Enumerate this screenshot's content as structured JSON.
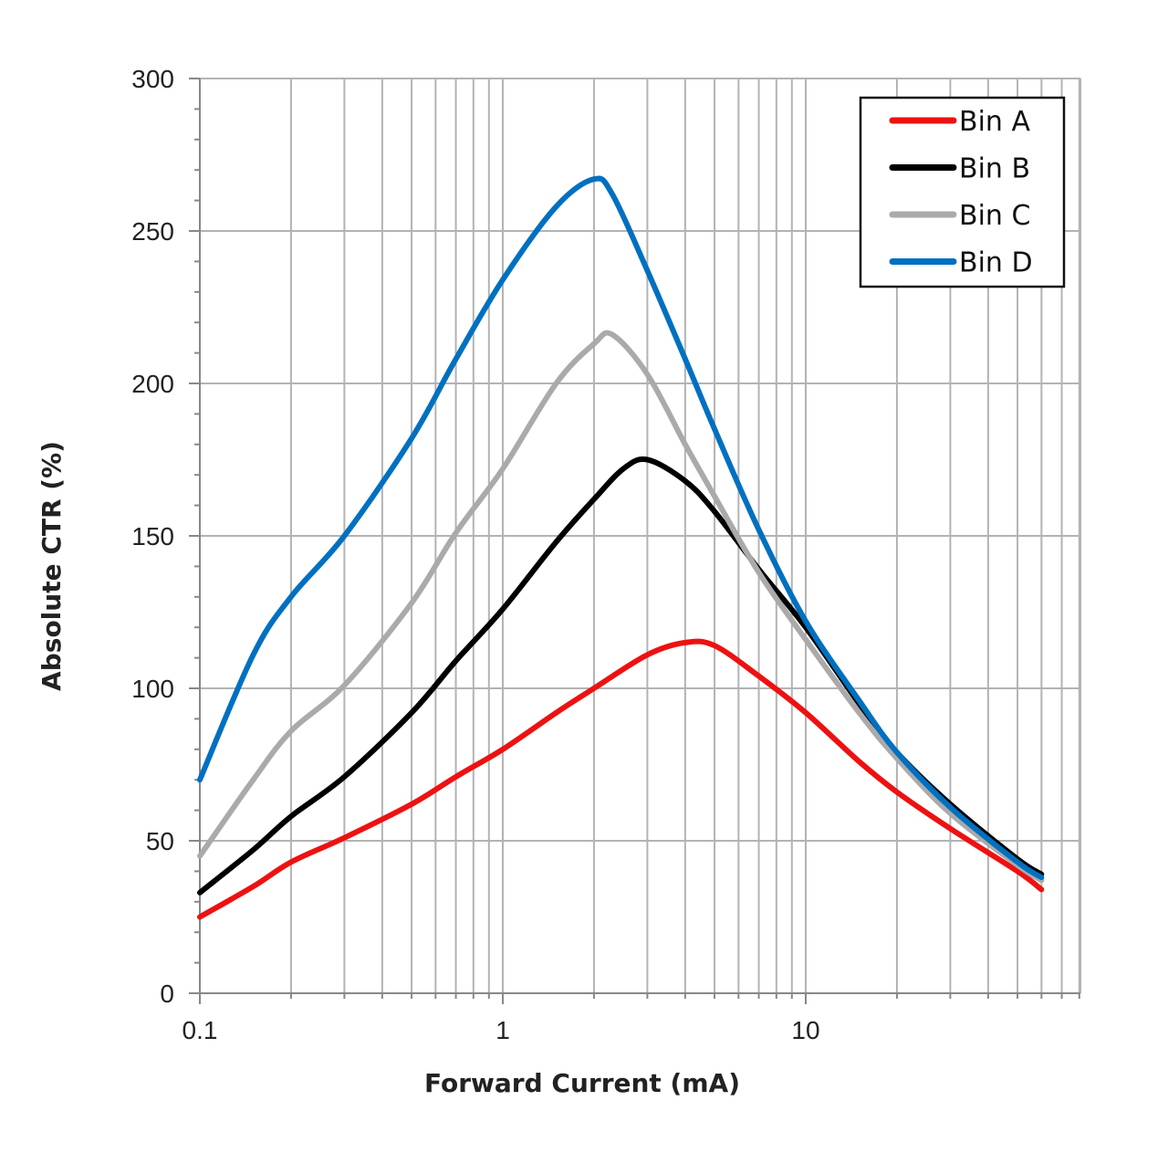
{
  "chart_data": {
    "type": "line",
    "xlabel": "Forward Current (mA)",
    "ylabel": "Absolute CTR (%)",
    "x_scale": "log",
    "xlim": [
      0.1,
      80
    ],
    "ylim": [
      0,
      300
    ],
    "x_tick_labels": [
      "0.1",
      "1",
      "10"
    ],
    "x_ticks": [
      0.1,
      1,
      10
    ],
    "y_ticks": [
      0,
      50,
      100,
      150,
      200,
      250,
      300
    ],
    "y_tick_labels": [
      "0",
      "50",
      "100",
      "150",
      "200",
      "250",
      "300"
    ],
    "grid": true,
    "legend_position": "top-right",
    "series": [
      {
        "name": "Bin A",
        "color": "#ee1111",
        "points": [
          [
            0.1,
            25
          ],
          [
            0.15,
            35
          ],
          [
            0.2,
            43
          ],
          [
            0.3,
            51
          ],
          [
            0.5,
            62
          ],
          [
            0.7,
            71
          ],
          [
            1,
            80
          ],
          [
            1.5,
            92
          ],
          [
            2,
            100
          ],
          [
            3,
            111
          ],
          [
            4,
            115
          ],
          [
            5,
            114
          ],
          [
            7,
            104
          ],
          [
            10,
            92
          ],
          [
            15,
            76
          ],
          [
            20,
            66
          ],
          [
            30,
            54
          ],
          [
            50,
            40
          ],
          [
            60,
            34
          ]
        ]
      },
      {
        "name": "Bin B",
        "color": "#000000",
        "points": [
          [
            0.1,
            33
          ],
          [
            0.15,
            47
          ],
          [
            0.2,
            58
          ],
          [
            0.3,
            71
          ],
          [
            0.5,
            92
          ],
          [
            0.7,
            109
          ],
          [
            1,
            126
          ],
          [
            1.5,
            148
          ],
          [
            2,
            162
          ],
          [
            2.5,
            172
          ],
          [
            3,
            175
          ],
          [
            4,
            168
          ],
          [
            5,
            158
          ],
          [
            7,
            139
          ],
          [
            10,
            120
          ],
          [
            15,
            95
          ],
          [
            20,
            79
          ],
          [
            30,
            62
          ],
          [
            50,
            44
          ],
          [
            60,
            39
          ]
        ]
      },
      {
        "name": "Bin C",
        "color": "#aaaaaa",
        "points": [
          [
            0.1,
            45
          ],
          [
            0.15,
            70
          ],
          [
            0.2,
            86
          ],
          [
            0.3,
            101
          ],
          [
            0.5,
            128
          ],
          [
            0.7,
            151
          ],
          [
            1,
            172
          ],
          [
            1.5,
            200
          ],
          [
            2,
            213
          ],
          [
            2.3,
            216
          ],
          [
            3,
            203
          ],
          [
            4,
            180
          ],
          [
            5,
            163
          ],
          [
            7,
            138
          ],
          [
            10,
            116
          ],
          [
            15,
            92
          ],
          [
            20,
            77
          ],
          [
            30,
            59
          ],
          [
            50,
            42
          ],
          [
            60,
            37
          ]
        ]
      },
      {
        "name": "Bin D",
        "color": "#0070c0",
        "points": [
          [
            0.1,
            70
          ],
          [
            0.15,
            111
          ],
          [
            0.2,
            130
          ],
          [
            0.3,
            150
          ],
          [
            0.5,
            182
          ],
          [
            0.7,
            208
          ],
          [
            1,
            234
          ],
          [
            1.5,
            258
          ],
          [
            2,
            267
          ],
          [
            2.3,
            262
          ],
          [
            3,
            237
          ],
          [
            4,
            208
          ],
          [
            5,
            185
          ],
          [
            7,
            152
          ],
          [
            10,
            122
          ],
          [
            15,
            96
          ],
          [
            20,
            79
          ],
          [
            30,
            61
          ],
          [
            50,
            43
          ],
          [
            60,
            38
          ]
        ]
      }
    ]
  }
}
